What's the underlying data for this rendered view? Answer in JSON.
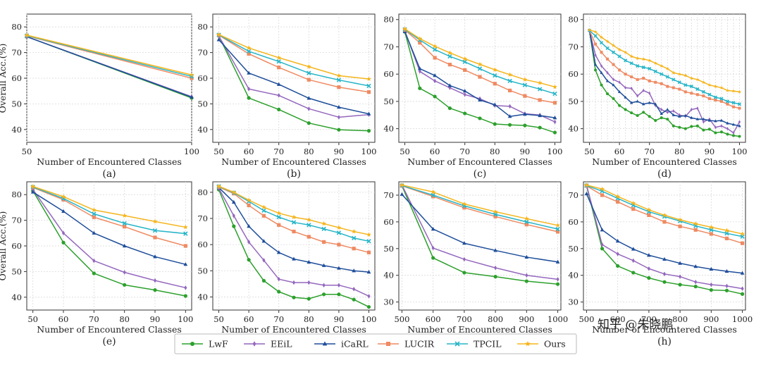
{
  "legend": [
    {
      "name": "LwF",
      "color": "#2ca02c",
      "marker": "circle"
    },
    {
      "name": "EEiL",
      "color": "#9467bd",
      "marker": "diamond"
    },
    {
      "name": "iCaRL",
      "color": "#1f4e9a",
      "marker": "triangle"
    },
    {
      "name": "LUCIR",
      "color": "#ef8a62",
      "marker": "square"
    },
    {
      "name": "TPCIL",
      "color": "#26b5c8",
      "marker": "x"
    },
    {
      "name": "Ours",
      "color": "#f5b51c",
      "marker": "star"
    }
  ],
  "watermark": "知乎 @朱晓鹏",
  "chart_data": [
    {
      "type": "line",
      "panel_label": "(a)",
      "xlabel": "Number of Encountered Classes",
      "ylabel": "Overall Acc.(%)",
      "xlim": [
        50,
        100
      ],
      "ylim": [
        35,
        85
      ],
      "xticks": [
        50,
        100
      ],
      "yticks": [
        40,
        50,
        60,
        70,
        80
      ],
      "grid": true,
      "x": [
        50,
        100
      ],
      "series": [
        {
          "name": "LwF",
          "values": [
            76.2,
            52.3
          ]
        },
        {
          "name": "EEiL",
          "values": [
            76.2,
            52.8
          ]
        },
        {
          "name": "iCaRL",
          "values": [
            76.2,
            52.6
          ]
        },
        {
          "name": "LUCIR",
          "values": [
            76.5,
            60.0
          ]
        },
        {
          "name": "TPCIL",
          "values": [
            76.6,
            60.7
          ]
        },
        {
          "name": "Ours",
          "values": [
            76.8,
            61.3
          ]
        }
      ]
    },
    {
      "type": "line",
      "panel_label": "(b)",
      "xlabel": "Number of Encountered Classes",
      "ylabel": "",
      "xlim": [
        48,
        102
      ],
      "ylim": [
        35,
        85
      ],
      "xticks": [
        50,
        60,
        70,
        80,
        90,
        100
      ],
      "yticks": [
        40,
        50,
        60,
        70,
        80
      ],
      "grid": true,
      "x": [
        50,
        60,
        70,
        80,
        90,
        100
      ],
      "series": [
        {
          "name": "LwF",
          "values": [
            76.5,
            52.3,
            47.8,
            42.5,
            39.9,
            39.5
          ]
        },
        {
          "name": "EEiL",
          "values": [
            76.5,
            55.8,
            53.3,
            48.1,
            44.8,
            45.8
          ]
        },
        {
          "name": "iCaRL",
          "values": [
            75.0,
            62.0,
            57.6,
            52.2,
            48.7,
            46.1
          ]
        },
        {
          "name": "LUCIR",
          "values": [
            76.8,
            69.5,
            64.2,
            59.4,
            56.5,
            54.6
          ]
        },
        {
          "name": "TPCIL",
          "values": [
            76.9,
            70.5,
            66.5,
            62.0,
            59.3,
            57.0
          ]
        },
        {
          "name": "Ours",
          "values": [
            77.0,
            71.8,
            68.0,
            64.5,
            61.0,
            59.7
          ]
        }
      ]
    },
    {
      "type": "line",
      "panel_label": "(c)",
      "xlabel": "Number of Encountered Classes",
      "ylabel": "",
      "xlim": [
        48,
        102
      ],
      "ylim": [
        35,
        82
      ],
      "xticks": [
        50,
        60,
        70,
        80,
        90,
        100
      ],
      "yticks": [
        40,
        50,
        60,
        70,
        80
      ],
      "grid": true,
      "x": [
        50,
        55,
        60,
        65,
        70,
        75,
        80,
        85,
        90,
        95,
        100
      ],
      "series": [
        {
          "name": "LwF",
          "values": [
            75.5,
            54.8,
            51.8,
            47.5,
            45.6,
            43.8,
            41.7,
            41.4,
            41.2,
            40.4,
            38.6
          ]
        },
        {
          "name": "EEiL",
          "values": [
            75.8,
            61.0,
            57.5,
            55.0,
            52.5,
            51.0,
            48.5,
            48.2,
            45.5,
            45.0,
            42.5
          ]
        },
        {
          "name": "iCaRL",
          "values": [
            75.6,
            62.0,
            59.5,
            55.8,
            53.8,
            50.5,
            48.8,
            44.5,
            45.3,
            44.8,
            44.0
          ]
        },
        {
          "name": "LUCIR",
          "values": [
            76.2,
            71.5,
            66.0,
            63.5,
            61.5,
            59.0,
            56.5,
            54.0,
            52.0,
            50.5,
            49.5
          ]
        },
        {
          "name": "TPCIL",
          "values": [
            76.4,
            72.5,
            69.0,
            66.5,
            64.5,
            62.0,
            59.5,
            57.5,
            56.0,
            54.5,
            52.8
          ]
        },
        {
          "name": "Ours",
          "values": [
            76.6,
            73.0,
            70.2,
            67.8,
            65.6,
            63.6,
            61.6,
            59.8,
            58.0,
            56.8,
            55.3
          ]
        }
      ]
    },
    {
      "type": "line",
      "panel_label": "(d)",
      "xlabel": "Number of Encountered Classes",
      "ylabel": "",
      "xlim": [
        48,
        102
      ],
      "ylim": [
        35,
        82
      ],
      "xticks": [
        50,
        60,
        70,
        80,
        90,
        100
      ],
      "yticks": [
        40,
        50,
        60,
        70,
        80
      ],
      "grid": true,
      "x": [
        50,
        52,
        54,
        56,
        58,
        60,
        62,
        64,
        66,
        68,
        70,
        72,
        74,
        76,
        78,
        80,
        82,
        84,
        86,
        88,
        90,
        92,
        94,
        96,
        98,
        100
      ],
      "series": [
        {
          "name": "LwF",
          "values": [
            76.0,
            61.5,
            56.0,
            52.8,
            51.0,
            48.5,
            47.0,
            45.8,
            44.8,
            46.0,
            44.5,
            43.0,
            44.0,
            43.5,
            41.0,
            40.5,
            40.0,
            40.8,
            41.0,
            39.5,
            39.8,
            38.5,
            38.8,
            38.0,
            37.5,
            37.2
          ]
        },
        {
          "name": "EEiL",
          "values": [
            76.0,
            67.0,
            63.0,
            60.5,
            58.0,
            57.0,
            55.0,
            54.8,
            52.0,
            54.0,
            53.0,
            48.5,
            47.0,
            46.0,
            46.5,
            45.0,
            44.5,
            47.0,
            47.5,
            42.5,
            43.5,
            40.5,
            41.0,
            40.0,
            38.5,
            42.5
          ]
        },
        {
          "name": "iCaRL",
          "values": [
            76.0,
            63.5,
            60.5,
            57.5,
            56.0,
            53.5,
            51.5,
            49.5,
            50.0,
            49.0,
            49.5,
            49.0,
            45.5,
            47.0,
            45.0,
            44.5,
            44.8,
            44.0,
            43.5,
            43.5,
            43.0,
            42.8,
            43.0,
            42.0,
            41.5,
            41.0
          ]
        },
        {
          "name": "LUCIR",
          "values": [
            76.0,
            71.0,
            68.0,
            65.5,
            63.5,
            61.5,
            60.0,
            59.0,
            58.0,
            58.5,
            57.5,
            57.0,
            56.5,
            55.5,
            55.0,
            54.5,
            53.5,
            53.0,
            52.5,
            52.0,
            51.0,
            50.5,
            50.0,
            49.0,
            48.0,
            47.5
          ]
        },
        {
          "name": "TPCIL",
          "values": [
            76.0,
            74.0,
            71.5,
            69.5,
            68.0,
            66.5,
            65.0,
            64.0,
            63.0,
            62.5,
            62.0,
            61.0,
            60.0,
            59.0,
            58.0,
            57.0,
            56.0,
            55.5,
            54.5,
            53.5,
            52.5,
            51.5,
            51.0,
            50.0,
            49.5,
            49.0
          ]
        },
        {
          "name": "Ours",
          "values": [
            76.2,
            75.5,
            73.5,
            72.0,
            70.5,
            69.0,
            68.0,
            66.5,
            65.8,
            65.5,
            65.0,
            64.0,
            63.0,
            62.0,
            60.5,
            60.0,
            59.5,
            58.5,
            58.0,
            57.0,
            56.0,
            55.5,
            55.0,
            54.0,
            53.8,
            53.5
          ]
        }
      ]
    },
    {
      "type": "line",
      "panel_label": "(e)",
      "xlabel": "Number of Encountered Classes",
      "ylabel": "Overall Acc.(%)",
      "xlim": [
        48,
        102
      ],
      "ylim": [
        35,
        85
      ],
      "xticks": [
        50,
        60,
        70,
        80,
        90,
        100
      ],
      "yticks": [
        40,
        50,
        60,
        70,
        80
      ],
      "grid": true,
      "x": [
        50,
        60,
        70,
        80,
        90,
        100
      ],
      "series": [
        {
          "name": "LwF",
          "values": [
            81.5,
            61.3,
            49.3,
            44.8,
            42.8,
            40.5
          ]
        },
        {
          "name": "EEiL",
          "values": [
            82.0,
            65.0,
            54.2,
            49.7,
            46.5,
            43.7
          ]
        },
        {
          "name": "iCaRL",
          "values": [
            81.0,
            73.5,
            65.0,
            60.0,
            55.8,
            52.8
          ]
        },
        {
          "name": "LUCIR",
          "values": [
            82.8,
            78.0,
            71.2,
            67.5,
            63.3,
            60.0
          ]
        },
        {
          "name": "TPCIL",
          "values": [
            83.0,
            78.5,
            72.5,
            68.8,
            66.0,
            64.8
          ]
        },
        {
          "name": "Ours",
          "values": [
            83.2,
            79.2,
            74.0,
            71.8,
            69.5,
            67.3
          ]
        }
      ]
    },
    {
      "type": "line",
      "panel_label": "(f)",
      "xlabel": "Number of Encountered Classes",
      "ylabel": "",
      "xlim": [
        48,
        102
      ],
      "ylim": [
        35,
        84
      ],
      "xticks": [
        50,
        60,
        70,
        80,
        90,
        100
      ],
      "yticks": [
        40,
        50,
        60,
        70,
        80
      ],
      "grid": true,
      "x": [
        50,
        55,
        60,
        65,
        70,
        75,
        80,
        85,
        90,
        95,
        100
      ],
      "series": [
        {
          "name": "LwF",
          "values": [
            81.0,
            67.0,
            54.2,
            46.2,
            42.0,
            39.8,
            39.3,
            41.0,
            41.0,
            39.0,
            36.2
          ]
        },
        {
          "name": "EEiL",
          "values": [
            81.5,
            71.0,
            61.0,
            54.0,
            46.8,
            45.5,
            45.5,
            44.5,
            44.5,
            43.0,
            40.3
          ]
        },
        {
          "name": "iCaRL",
          "values": [
            81.8,
            76.2,
            67.0,
            61.3,
            57.0,
            54.5,
            53.3,
            52.0,
            51.0,
            50.0,
            49.5
          ]
        },
        {
          "name": "LUCIR",
          "values": [
            82.0,
            79.5,
            75.0,
            71.0,
            67.5,
            65.0,
            63.0,
            61.0,
            60.0,
            58.5,
            57.0
          ]
        },
        {
          "name": "TPCIL",
          "values": [
            82.2,
            79.8,
            76.5,
            73.0,
            70.5,
            68.5,
            67.5,
            66.0,
            64.5,
            62.5,
            61.3
          ]
        },
        {
          "name": "Ours",
          "values": [
            82.3,
            80.0,
            77.0,
            74.3,
            72.0,
            70.5,
            69.5,
            68.0,
            66.5,
            65.0,
            63.8
          ]
        }
      ]
    },
    {
      "type": "line",
      "panel_label": "(g)",
      "xlabel": "Number of Encountered Classes",
      "ylabel": "",
      "xlim": [
        490,
        1010
      ],
      "ylim": [
        27,
        75
      ],
      "xticks": [
        500,
        600,
        700,
        800,
        900,
        1000
      ],
      "yticks": [
        30,
        40,
        50,
        60,
        70
      ],
      "grid": true,
      "x": [
        500,
        600,
        700,
        800,
        900,
        1000
      ],
      "series": [
        {
          "name": "LwF",
          "values": [
            73.5,
            46.5,
            41.0,
            39.5,
            37.8,
            36.7
          ]
        },
        {
          "name": "EEiL",
          "values": [
            73.8,
            50.2,
            46.0,
            42.8,
            40.0,
            38.5
          ]
        },
        {
          "name": "iCaRL",
          "values": [
            70.3,
            57.3,
            52.0,
            49.3,
            46.8,
            45.0
          ]
        },
        {
          "name": "LUCIR",
          "values": [
            73.5,
            69.5,
            65.3,
            62.0,
            59.0,
            56.3
          ]
        },
        {
          "name": "TPCIL",
          "values": [
            73.6,
            70.0,
            66.0,
            62.8,
            60.0,
            57.3
          ]
        },
        {
          "name": "Ours",
          "values": [
            73.8,
            71.2,
            66.7,
            63.8,
            61.2,
            58.7
          ]
        }
      ]
    },
    {
      "type": "line",
      "panel_label": "(h)",
      "xlabel": "Number of Encountered Classes",
      "ylabel": "",
      "xlim": [
        490,
        1010
      ],
      "ylim": [
        27,
        75
      ],
      "xticks": [
        500,
        600,
        700,
        800,
        900,
        1000
      ],
      "yticks": [
        30,
        40,
        50,
        60,
        70
      ],
      "grid": true,
      "x": [
        500,
        550,
        600,
        650,
        700,
        750,
        800,
        850,
        900,
        950,
        1000
      ],
      "series": [
        {
          "name": "LwF",
          "values": [
            73.5,
            50.0,
            43.5,
            41.0,
            39.0,
            37.5,
            36.5,
            35.8,
            34.5,
            34.3,
            33.0
          ]
        },
        {
          "name": "EEiL",
          "values": [
            73.8,
            51.5,
            48.0,
            45.5,
            42.5,
            40.5,
            39.5,
            37.5,
            36.5,
            36.0,
            35.0
          ]
        },
        {
          "name": "iCaRL",
          "values": [
            70.5,
            57.0,
            52.8,
            49.8,
            47.5,
            46.0,
            44.5,
            43.3,
            42.3,
            41.5,
            40.8
          ]
        },
        {
          "name": "LUCIR",
          "values": [
            73.5,
            70.0,
            67.5,
            64.8,
            62.5,
            60.0,
            58.3,
            57.0,
            55.5,
            53.8,
            52.0
          ]
        },
        {
          "name": "TPCIL",
          "values": [
            73.6,
            71.5,
            68.8,
            66.2,
            63.8,
            62.0,
            60.3,
            58.5,
            57.0,
            55.7,
            54.5
          ]
        },
        {
          "name": "Ours",
          "values": [
            73.8,
            72.3,
            69.5,
            67.0,
            64.5,
            62.5,
            60.8,
            59.3,
            58.0,
            56.8,
            55.5
          ]
        }
      ]
    }
  ]
}
